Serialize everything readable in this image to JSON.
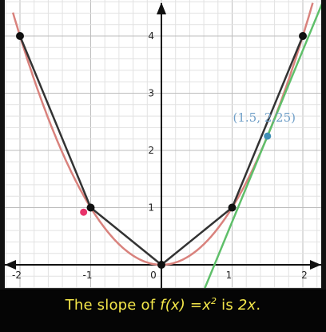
{
  "chart_data": {
    "type": "line",
    "xlim": [
      -2.05,
      2.2
    ],
    "ylim": [
      -0.05,
      4.6
    ],
    "grid": true,
    "minor_grid_step": 0.2,
    "x_ticks": [
      "-2",
      "-1",
      "0",
      "1",
      "2"
    ],
    "x_tick_values": [
      -2,
      -1,
      0,
      1,
      2
    ],
    "y_ticks": [
      "1",
      "2",
      "3",
      "4"
    ],
    "y_tick_values": [
      1,
      2,
      3,
      4
    ],
    "series": [
      {
        "kind": "curve",
        "function": "x^2",
        "color": "#d9827d",
        "domain": [
          -2.1,
          2.15
        ]
      },
      {
        "kind": "polyline",
        "color": "#333333",
        "x": [
          -2,
          -1,
          0,
          1,
          2
        ],
        "y": [
          4,
          1,
          0,
          1,
          4
        ]
      },
      {
        "kind": "tangent",
        "color": "#5fbf6a",
        "slope": 3,
        "point": [
          1.5,
          2.25
        ]
      }
    ],
    "points": [
      {
        "x": -2,
        "y": 4,
        "color": "#111111"
      },
      {
        "x": -1,
        "y": 1,
        "color": "#111111"
      },
      {
        "x": 0,
        "y": 0,
        "color": "#111111"
      },
      {
        "x": 1,
        "y": 1,
        "color": "#111111"
      },
      {
        "x": 2,
        "y": 4,
        "color": "#111111"
      },
      {
        "x": -1.1,
        "y": 0.92,
        "color": "#e8336b"
      },
      {
        "x": 1.5,
        "y": 2.25,
        "color": "#3f8fb5"
      }
    ],
    "annotation": {
      "text": "(1.5, 2.25)",
      "color": "#6f9fc8"
    },
    "colors": {
      "background": "#ffffff",
      "grid_minor": "#e2e2e2",
      "grid_major": "#bdbdbd",
      "axis": "#111111"
    }
  },
  "caption": {
    "pre": "The slope of ",
    "fx": "f(x) =x",
    "sup": "2",
    "mid": " is ",
    "rhs": "2x",
    "end": "."
  }
}
